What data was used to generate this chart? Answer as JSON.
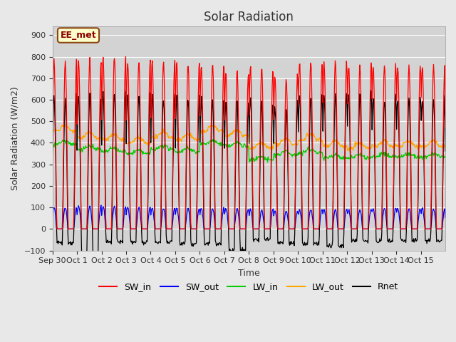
{
  "title": "Solar Radiation",
  "ylabel": "Solar Radiation (W/m2)",
  "xlabel": "Time",
  "ylim": [
    -100,
    940
  ],
  "yticks": [
    -100,
    0,
    100,
    200,
    300,
    400,
    500,
    600,
    700,
    800,
    900
  ],
  "background_color": "#e8e8e8",
  "plot_bg_color": "#d3d3d3",
  "label_box_text": "EE_met",
  "label_box_facecolor": "#ffffcc",
  "label_box_edgecolor": "#8b4513",
  "legend_entries": [
    "SW_in",
    "SW_out",
    "LW_in",
    "LW_out",
    "Rnet"
  ],
  "legend_colors": [
    "#ff0000",
    "#0000ff",
    "#00cc00",
    "#ffa500",
    "#000000"
  ],
  "n_days": 16,
  "xtick_labels": [
    "Sep 30",
    "Oct 1",
    "Oct 2",
    "Oct 3",
    "Oct 4",
    "Oct 5",
    "Oct 6",
    "Oct 7",
    "Oct 8",
    "Oct 9",
    "Oct 10",
    "Oct 11",
    "Oct 12",
    "Oct 13",
    "Oct 14",
    "Oct 15"
  ],
  "sw_in_peaks": [
    780,
    785,
    800,
    780,
    780,
    770,
    760,
    730,
    748,
    700,
    780,
    775,
    758,
    760,
    760,
    760
  ],
  "sw_out_peaks": [
    100,
    105,
    103,
    100,
    95,
    95,
    95,
    95,
    90,
    83,
    90,
    90,
    90,
    95,
    95,
    95
  ],
  "lw_in_base": [
    395,
    370,
    360,
    350,
    370,
    360,
    395,
    385,
    320,
    345,
    355,
    330,
    330,
    335,
    335,
    335
  ],
  "lw_out_base": [
    455,
    425,
    415,
    400,
    425,
    415,
    455,
    435,
    375,
    395,
    415,
    385,
    375,
    385,
    385,
    385
  ],
  "rnet_min": [
    -65,
    -120,
    -60,
    -60,
    -60,
    -70,
    -70,
    -100,
    -50,
    -65,
    -70,
    -80,
    -55,
    -55,
    -55,
    -55
  ]
}
